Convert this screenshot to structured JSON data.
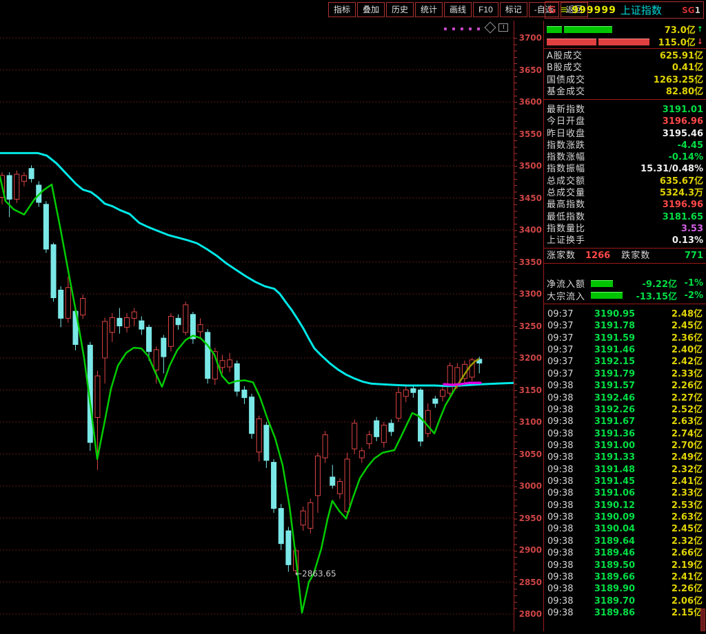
{
  "menu": {
    "items": [
      "指标",
      "叠加",
      "历史",
      "统计",
      "画线",
      "F10",
      "标记",
      "-自选",
      "返回"
    ]
  },
  "header": {
    "g_label": "G",
    "menu_glyph": "≡",
    "code": "999999",
    "name": "上证指数",
    "badge_prefix": "SG",
    "badge_suffix": "1"
  },
  "volume_compare": {
    "up": {
      "value": "73.0亿",
      "arrow": "↑",
      "segments": [
        22,
        70
      ]
    },
    "down": {
      "value": "115.0亿",
      "arrow": "↓",
      "segments": [
        72,
        74
      ]
    }
  },
  "turnover_rows": [
    {
      "label": "A股成交",
      "value": "625.91亿"
    },
    {
      "label": "B股成交",
      "value": "0.41亿"
    },
    {
      "label": "国债成交",
      "value": "1263.25亿"
    },
    {
      "label": "基金成交",
      "value": "82.80亿"
    }
  ],
  "index_rows": [
    {
      "label": "最新指数",
      "value": "3191.01",
      "cls": "green"
    },
    {
      "label": "今日开盘",
      "value": "3196.96",
      "cls": "red"
    },
    {
      "label": "昨日收盘",
      "value": "3195.46",
      "cls": "white"
    },
    {
      "label": "指数涨跌",
      "value": "-4.45",
      "cls": "green"
    },
    {
      "label": "指数涨幅",
      "value": "-0.14%",
      "cls": "green"
    },
    {
      "label": "指数振幅",
      "value": "15.31/0.48%",
      "cls": "white"
    },
    {
      "label": "总成交额",
      "value": "635.67亿",
      "cls": "yellow"
    },
    {
      "label": "总成交量",
      "value": "5324.3万",
      "cls": "yellow"
    },
    {
      "label": "最高指数",
      "value": "3196.96",
      "cls": "red"
    },
    {
      "label": "最低指数",
      "value": "3181.65",
      "cls": "green"
    },
    {
      "label": "指数量比",
      "value": "3.53",
      "cls": "magenta"
    },
    {
      "label": "上证换手",
      "value": "0.13%",
      "cls": "white"
    }
  ],
  "breadth": {
    "up_label": "涨家数",
    "up_value": "1266",
    "down_label": "跌家数",
    "down_value": "771"
  },
  "flow_rows": [
    {
      "label": "净流入额",
      "bar": 32,
      "value": "-9.22亿",
      "pct": "-1%"
    },
    {
      "label": "大宗流入",
      "bar": 46,
      "value": "-13.15亿",
      "pct": "-2%"
    }
  ],
  "tick_list": [
    [
      "09:37",
      "3190.95",
      "2.48亿"
    ],
    [
      "09:37",
      "3191.78",
      "2.45亿"
    ],
    [
      "09:37",
      "3191.59",
      "2.36亿"
    ],
    [
      "09:37",
      "3191.46",
      "2.40亿"
    ],
    [
      "09:37",
      "3192.15",
      "2.42亿"
    ],
    [
      "09:37",
      "3191.79",
      "2.33亿"
    ],
    [
      "09:38",
      "3191.57",
      "2.26亿"
    ],
    [
      "09:38",
      "3192.46",
      "2.27亿"
    ],
    [
      "09:38",
      "3192.26",
      "2.52亿"
    ],
    [
      "09:38",
      "3191.67",
      "2.63亿"
    ],
    [
      "09:38",
      "3191.36",
      "2.74亿"
    ],
    [
      "09:38",
      "3191.00",
      "2.70亿"
    ],
    [
      "09:38",
      "3191.33",
      "2.49亿"
    ],
    [
      "09:38",
      "3191.48",
      "2.32亿"
    ],
    [
      "09:38",
      "3191.45",
      "2.41亿"
    ],
    [
      "09:38",
      "3191.06",
      "2.33亿"
    ],
    [
      "09:38",
      "3190.12",
      "2.53亿"
    ],
    [
      "09:38",
      "3190.09",
      "2.63亿"
    ],
    [
      "09:38",
      "3190.04",
      "2.45亿"
    ],
    [
      "09:38",
      "3189.64",
      "2.32亿"
    ],
    [
      "09:38",
      "3189.46",
      "2.66亿"
    ],
    [
      "09:38",
      "3189.50",
      "2.19亿"
    ],
    [
      "09:38",
      "3189.66",
      "2.41亿"
    ],
    [
      "09:38",
      "3189.90",
      "2.26亿"
    ],
    [
      "09:38",
      "3189.70",
      "2.06亿"
    ],
    [
      "09:38",
      "3189.86",
      "2.15亿"
    ]
  ],
  "chart_data": {
    "type": "candlestick",
    "symbol": "999999 上证指数",
    "ylim": [
      2800,
      3700
    ],
    "y_axis_labels": [
      3700,
      3650,
      3600,
      3550,
      3500,
      3450,
      3400,
      3350,
      3300,
      3250,
      3200,
      3150,
      3100,
      3050,
      3000,
      2950,
      2900,
      2850,
      2800
    ],
    "grid": "dotted-red-horizontal-every-50",
    "colors": {
      "up_candle": "#e04444",
      "down_candle": "#7be8e8",
      "upper_band": "#00e8e8",
      "lower_band": "#00cc00",
      "olive_line": "#9a9a00",
      "magenta_line": "#e000e0",
      "axis_text": "#cc4444",
      "grid_line": "#7d2222"
    },
    "candles": [
      [
        3451,
        3490,
        3440,
        3485
      ],
      [
        3485,
        3490,
        3420,
        3448
      ],
      [
        3448,
        3493,
        3442,
        3487
      ],
      [
        3476,
        3490,
        3468,
        3485
      ],
      [
        3496,
        3501,
        3474,
        3480
      ],
      [
        3470,
        3476,
        3436,
        3443
      ],
      [
        3440,
        3445,
        3364,
        3370
      ],
      [
        3377,
        3380,
        3288,
        3294
      ],
      [
        3306,
        3312,
        3248,
        3262
      ],
      [
        3262,
        3327,
        3255,
        3310
      ],
      [
        3273,
        3280,
        3212,
        3221
      ],
      [
        3267,
        3299,
        3261,
        3293
      ],
      [
        3220,
        3225,
        3055,
        3068
      ],
      [
        3107,
        3180,
        3025,
        3172
      ],
      [
        3200,
        3263,
        3160,
        3257
      ],
      [
        3240,
        3270,
        3225,
        3263
      ],
      [
        3262,
        3278,
        3238,
        3250
      ],
      [
        3248,
        3270,
        3240,
        3263
      ],
      [
        3262,
        3278,
        3250,
        3272
      ],
      [
        3258,
        3265,
        3236,
        3245
      ],
      [
        3248,
        3252,
        3196,
        3210
      ],
      [
        3181,
        3218,
        3160,
        3213
      ],
      [
        3231,
        3236,
        3176,
        3202
      ],
      [
        3218,
        3270,
        3210,
        3265
      ],
      [
        3262,
        3268,
        3244,
        3252
      ],
      [
        3240,
        3288,
        3235,
        3283
      ],
      [
        3268,
        3272,
        3222,
        3230
      ],
      [
        3241,
        3262,
        3230,
        3252
      ],
      [
        3240,
        3245,
        3160,
        3168
      ],
      [
        3167,
        3216,
        3158,
        3210
      ],
      [
        3185,
        3205,
        3176,
        3196
      ],
      [
        3186,
        3208,
        3178,
        3197
      ],
      [
        3191,
        3196,
        3140,
        3148
      ],
      [
        3150,
        3156,
        3128,
        3138
      ],
      [
        3139,
        3144,
        3074,
        3082
      ],
      [
        3053,
        3110,
        3038,
        3105
      ],
      [
        3095,
        3100,
        3028,
        3040
      ],
      [
        3037,
        3042,
        2958,
        2965
      ],
      [
        2965,
        2972,
        2900,
        2910
      ],
      [
        2930,
        2936,
        2866,
        2877
      ],
      [
        2868,
        2903,
        2863.65,
        2899
      ],
      [
        2939,
        2968,
        2930,
        2961
      ],
      [
        2934,
        2980,
        2926,
        2974
      ],
      [
        2985,
        3052,
        2958,
        3047
      ],
      [
        3044,
        3086,
        3036,
        3080
      ],
      [
        3014,
        3033,
        2996,
        3001
      ],
      [
        2988,
        3012,
        2980,
        3007
      ],
      [
        2960,
        3052,
        2952,
        3042
      ],
      [
        3058,
        3104,
        3050,
        3098
      ],
      [
        3044,
        3060,
        3036,
        3055
      ],
      [
        3066,
        3086,
        3058,
        3080
      ],
      [
        3102,
        3108,
        3070,
        3077
      ],
      [
        3068,
        3100,
        3060,
        3095
      ],
      [
        3098,
        3104,
        3078,
        3085
      ],
      [
        3106,
        3155,
        3100,
        3146
      ],
      [
        3140,
        3157,
        3131,
        3150
      ],
      [
        3152,
        3158,
        3138,
        3146
      ],
      [
        3150,
        3153,
        3062,
        3070
      ],
      [
        3082,
        3129,
        3076,
        3118
      ],
      [
        3136,
        3141,
        3122,
        3129
      ],
      [
        3140,
        3157,
        3132,
        3150
      ],
      [
        3145,
        3193,
        3140,
        3188
      ],
      [
        3160,
        3192,
        3152,
        3185
      ],
      [
        3168,
        3196,
        3160,
        3190
      ],
      [
        3170,
        3200,
        3164,
        3197
      ],
      [
        3198,
        3202,
        3176,
        3192
      ]
    ],
    "overlays": {
      "upper_band_cyan": [
        [
          0,
          3520
        ],
        [
          55,
          3520
        ],
        [
          68,
          3516
        ],
        [
          82,
          3504
        ],
        [
          96,
          3488
        ],
        [
          110,
          3472
        ],
        [
          120,
          3463
        ],
        [
          132,
          3459
        ],
        [
          142,
          3451
        ],
        [
          152,
          3441
        ],
        [
          163,
          3437
        ],
        [
          174,
          3431
        ],
        [
          188,
          3425
        ],
        [
          202,
          3411
        ],
        [
          216,
          3404
        ],
        [
          230,
          3398
        ],
        [
          244,
          3392
        ],
        [
          258,
          3388
        ],
        [
          272,
          3384
        ],
        [
          286,
          3379
        ],
        [
          300,
          3370
        ],
        [
          314,
          3360
        ],
        [
          328,
          3348
        ],
        [
          342,
          3338
        ],
        [
          356,
          3328
        ],
        [
          370,
          3319
        ],
        [
          384,
          3312
        ],
        [
          398,
          3308
        ],
        [
          406,
          3300
        ],
        [
          414,
          3288
        ],
        [
          423,
          3275
        ],
        [
          432,
          3260
        ],
        [
          440,
          3246
        ],
        [
          448,
          3230
        ],
        [
          456,
          3215
        ],
        [
          466,
          3204
        ],
        [
          478,
          3192
        ],
        [
          490,
          3182
        ],
        [
          502,
          3174
        ],
        [
          514,
          3168
        ],
        [
          526,
          3163
        ],
        [
          538,
          3160
        ],
        [
          552,
          3159
        ],
        [
          570,
          3158
        ],
        [
          590,
          3157
        ],
        [
          610,
          3157
        ],
        [
          630,
          3157
        ],
        [
          650,
          3156
        ],
        [
          668,
          3157
        ],
        [
          684,
          3158
        ],
        [
          700,
          3159
        ],
        [
          720,
          3160
        ],
        [
          745,
          3161
        ]
      ],
      "lower_band_green": [
        [
          0,
          3483
        ],
        [
          8,
          3445
        ],
        [
          20,
          3432
        ],
        [
          35,
          3424
        ],
        [
          50,
          3448
        ],
        [
          63,
          3462
        ],
        [
          75,
          3471
        ],
        [
          88,
          3400
        ],
        [
          100,
          3330
        ],
        [
          112,
          3262
        ],
        [
          122,
          3200
        ],
        [
          132,
          3120
        ],
        [
          141,
          3042
        ],
        [
          151,
          3096
        ],
        [
          161,
          3152
        ],
        [
          171,
          3188
        ],
        [
          183,
          3208
        ],
        [
          194,
          3216
        ],
        [
          205,
          3215
        ],
        [
          215,
          3203
        ],
        [
          225,
          3178
        ],
        [
          235,
          3155
        ],
        [
          246,
          3188
        ],
        [
          257,
          3212
        ],
        [
          269,
          3228
        ],
        [
          280,
          3235
        ],
        [
          291,
          3231
        ],
        [
          301,
          3220
        ],
        [
          311,
          3205
        ],
        [
          322,
          3172
        ],
        [
          332,
          3160
        ],
        [
          343,
          3164
        ],
        [
          355,
          3165
        ],
        [
          367,
          3162
        ],
        [
          377,
          3139
        ],
        [
          388,
          3105
        ],
        [
          399,
          3075
        ],
        [
          410,
          3032
        ],
        [
          420,
          2968
        ],
        [
          429,
          2890
        ],
        [
          438,
          2802
        ],
        [
          448,
          2850
        ],
        [
          455,
          2863
        ],
        [
          466,
          2902
        ],
        [
          475,
          2948
        ],
        [
          482,
          2977
        ],
        [
          492,
          2961
        ],
        [
          502,
          2949
        ],
        [
          512,
          2982
        ],
        [
          522,
          3012
        ],
        [
          533,
          3030
        ],
        [
          543,
          3043
        ],
        [
          555,
          3052
        ],
        [
          572,
          3056
        ],
        [
          583,
          3080
        ],
        [
          598,
          3114
        ],
        [
          606,
          3110
        ],
        [
          614,
          3102
        ],
        [
          622,
          3092
        ],
        [
          630,
          3082
        ],
        [
          638,
          3105
        ],
        [
          646,
          3126
        ],
        [
          653,
          3139
        ],
        [
          660,
          3152
        ]
      ],
      "trend_olive": [
        [
          660,
          3152
        ],
        [
          667,
          3163
        ],
        [
          674,
          3175
        ],
        [
          681,
          3186
        ],
        [
          688,
          3194
        ],
        [
          694,
          3198
        ]
      ],
      "flat_magenta": [
        [
          644,
          3159
        ],
        [
          656,
          3158
        ],
        [
          668,
          3159
        ],
        [
          680,
          3161
        ],
        [
          697,
          3161
        ]
      ]
    },
    "annotation": {
      "text": "←2863.65",
      "x": 428,
      "price": 2867
    },
    "toolbar_dots": 5
  }
}
